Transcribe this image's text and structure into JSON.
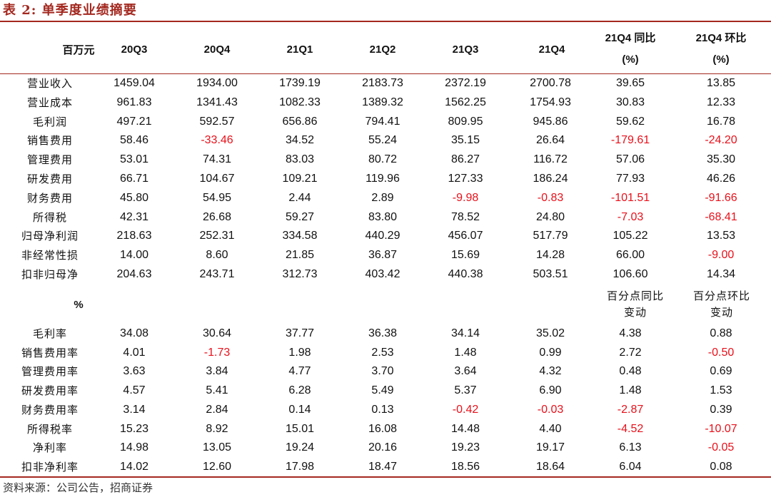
{
  "title": "表 2:  单季度业绩摘要",
  "header": {
    "unit": "百万元",
    "periods": [
      "20Q3",
      "20Q4",
      "21Q1",
      "21Q2",
      "21Q3",
      "21Q4"
    ],
    "yoy_line1": "21Q4 同比",
    "yoy_line2": "(%)",
    "qoq_line1": "21Q4 环比",
    "qoq_line2": "(%)"
  },
  "section1_rows": [
    {
      "label": "营业收入",
      "values": [
        "1459.04",
        "1934.00",
        "1739.19",
        "2183.73",
        "2372.19",
        "2700.78",
        "39.65",
        "13.85"
      ]
    },
    {
      "label": "营业成本",
      "values": [
        "961.83",
        "1341.43",
        "1082.33",
        "1389.32",
        "1562.25",
        "1754.93",
        "30.83",
        "12.33"
      ]
    },
    {
      "label": "毛利润",
      "values": [
        "497.21",
        "592.57",
        "656.86",
        "794.41",
        "809.95",
        "945.86",
        "59.62",
        "16.78"
      ]
    },
    {
      "label": "销售费用",
      "values": [
        "58.46",
        "-33.46",
        "34.52",
        "55.24",
        "35.15",
        "26.64",
        "-179.61",
        "-24.20"
      ]
    },
    {
      "label": "管理费用",
      "values": [
        "53.01",
        "74.31",
        "83.03",
        "80.72",
        "86.27",
        "116.72",
        "57.06",
        "35.30"
      ]
    },
    {
      "label": "研发费用",
      "values": [
        "66.71",
        "104.67",
        "109.21",
        "119.96",
        "127.33",
        "186.24",
        "77.93",
        "46.26"
      ]
    },
    {
      "label": "财务费用",
      "values": [
        "45.80",
        "54.95",
        "2.44",
        "2.89",
        "-9.98",
        "-0.83",
        "-101.51",
        "-91.66"
      ]
    },
    {
      "label": "所得税",
      "values": [
        "42.31",
        "26.68",
        "59.27",
        "83.80",
        "78.52",
        "24.80",
        "-7.03",
        "-68.41"
      ]
    },
    {
      "label": "归母净利润",
      "values": [
        "218.63",
        "252.31",
        "334.58",
        "440.29",
        "456.07",
        "517.79",
        "105.22",
        "13.53"
      ]
    },
    {
      "label": "非经常性损",
      "values": [
        "14.00",
        "8.60",
        "21.85",
        "36.87",
        "15.69",
        "14.28",
        "66.00",
        "-9.00"
      ]
    },
    {
      "label": "扣非归母净",
      "values": [
        "204.63",
        "243.71",
        "312.73",
        "403.42",
        "440.38",
        "503.51",
        "106.60",
        "14.34"
      ]
    }
  ],
  "section2": {
    "unit": "%",
    "yoy_line1": "百分点同比",
    "yoy_line2": "变动",
    "qoq_line1": "百分点环比",
    "qoq_line2": "变动"
  },
  "section2_rows": [
    {
      "label": "毛利率",
      "values": [
        "34.08",
        "30.64",
        "37.77",
        "36.38",
        "34.14",
        "35.02",
        "4.38",
        "0.88"
      ]
    },
    {
      "label": "销售费用率",
      "values": [
        "4.01",
        "-1.73",
        "1.98",
        "2.53",
        "1.48",
        "0.99",
        "2.72",
        "-0.50"
      ]
    },
    {
      "label": "管理费用率",
      "values": [
        "3.63",
        "3.84",
        "4.77",
        "3.70",
        "3.64",
        "4.32",
        "0.48",
        "0.69"
      ]
    },
    {
      "label": "研发费用率",
      "values": [
        "4.57",
        "5.41",
        "6.28",
        "5.49",
        "5.37",
        "6.90",
        "1.48",
        "1.53"
      ]
    },
    {
      "label": "财务费用率",
      "values": [
        "3.14",
        "2.84",
        "0.14",
        "0.13",
        "-0.42",
        "-0.03",
        "-2.87",
        "0.39"
      ]
    },
    {
      "label": "所得税率",
      "values": [
        "15.23",
        "8.92",
        "15.01",
        "16.08",
        "14.48",
        "4.40",
        "-4.52",
        "-10.07"
      ]
    },
    {
      "label": "净利率",
      "values": [
        "14.98",
        "13.05",
        "19.24",
        "20.16",
        "19.23",
        "19.17",
        "6.13",
        "-0.05"
      ]
    },
    {
      "label": "扣非净利率",
      "values": [
        "14.02",
        "12.60",
        "17.98",
        "18.47",
        "18.56",
        "18.64",
        "6.04",
        "0.08"
      ]
    }
  ],
  "source": "资料来源：公司公告，招商证券",
  "colors": {
    "accent": "#a3281f",
    "negative": "#e8101a"
  }
}
